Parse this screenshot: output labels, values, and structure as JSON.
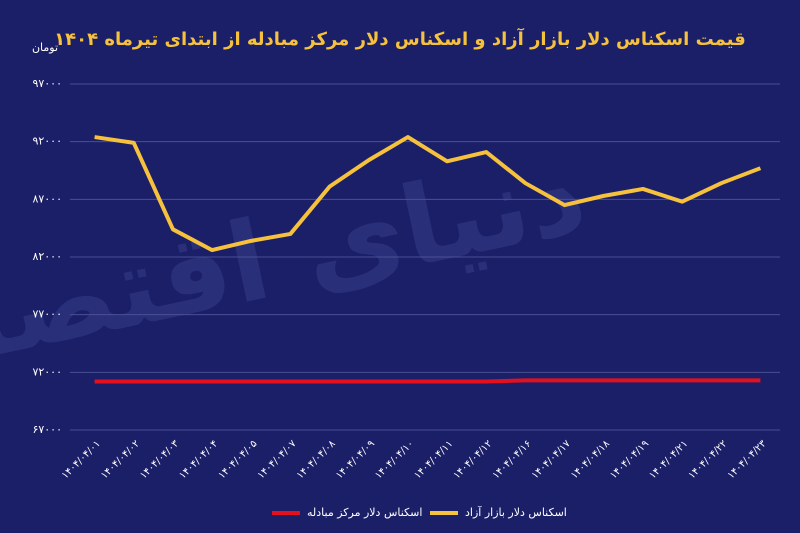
{
  "chart_data": {
    "type": "line",
    "title": "قیمت اسکناس دلار بازار آزاد و اسکناس دلار مرکز مبادله از ابتدای تیرماه ۱۴۰۴",
    "y_label": "تومان",
    "watermark": "دنیای اقتصاد",
    "categories": [
      "۱۴۰۴/۰۴/۰۱",
      "۱۴۰۴/۰۴/۰۲",
      "۱۴۰۴/۰۴/۰۳",
      "۱۴۰۴/۰۴/۰۴",
      "۱۴۰۴/۰۴/۰۵",
      "۱۴۰۴/۰۴/۰۷",
      "۱۴۰۴/۰۴/۰۸",
      "۱۴۰۴/۰۴/۰۹",
      "۱۴۰۴/۰۴/۱۰",
      "۱۴۰۴/۰۴/۱۱",
      "۱۴۰۴/۰۴/۱۲",
      "۱۴۰۴/۰۴/۱۶",
      "۱۴۰۴/۰۴/۱۷",
      "۱۴۰۴/۰۴/۱۸",
      "۱۴۰۴/۰۴/۱۹",
      "۱۴۰۴/۰۴/۲۱",
      "۱۴۰۴/۰۴/۲۲",
      "۱۴۰۴/۰۴/۲۳"
    ],
    "series": [
      {
        "name": "اسکناس دلار مرکز مبادله",
        "color": "#e3101e",
        "values": [
          71200,
          71200,
          71200,
          71200,
          71200,
          71200,
          71200,
          71200,
          71200,
          71200,
          71200,
          71300,
          71300,
          71300,
          71300,
          71300,
          71300,
          71300
        ]
      },
      {
        "name": "اسکناس دلار بازار آزاد",
        "color": "#f6c13c",
        "values": [
          92400,
          91900,
          84400,
          82600,
          83400,
          84000,
          88100,
          90400,
          92400,
          90300,
          91100,
          88400,
          86500,
          87300,
          87900,
          86800,
          88400,
          89700
        ]
      }
    ],
    "ylim": [
      67000,
      97000
    ],
    "yticks": [
      {
        "value": 67000,
        "label": "۶۷۰۰۰"
      },
      {
        "value": 72000,
        "label": "۷۲۰۰۰"
      },
      {
        "value": 77000,
        "label": "۷۷۰۰۰"
      },
      {
        "value": 82000,
        "label": "۸۲۰۰۰"
      },
      {
        "value": 87000,
        "label": "۸۷۰۰۰"
      },
      {
        "value": 92000,
        "label": "۹۲۰۰۰"
      },
      {
        "value": 97000,
        "label": "۹۷۰۰۰"
      }
    ],
    "grid": true
  }
}
